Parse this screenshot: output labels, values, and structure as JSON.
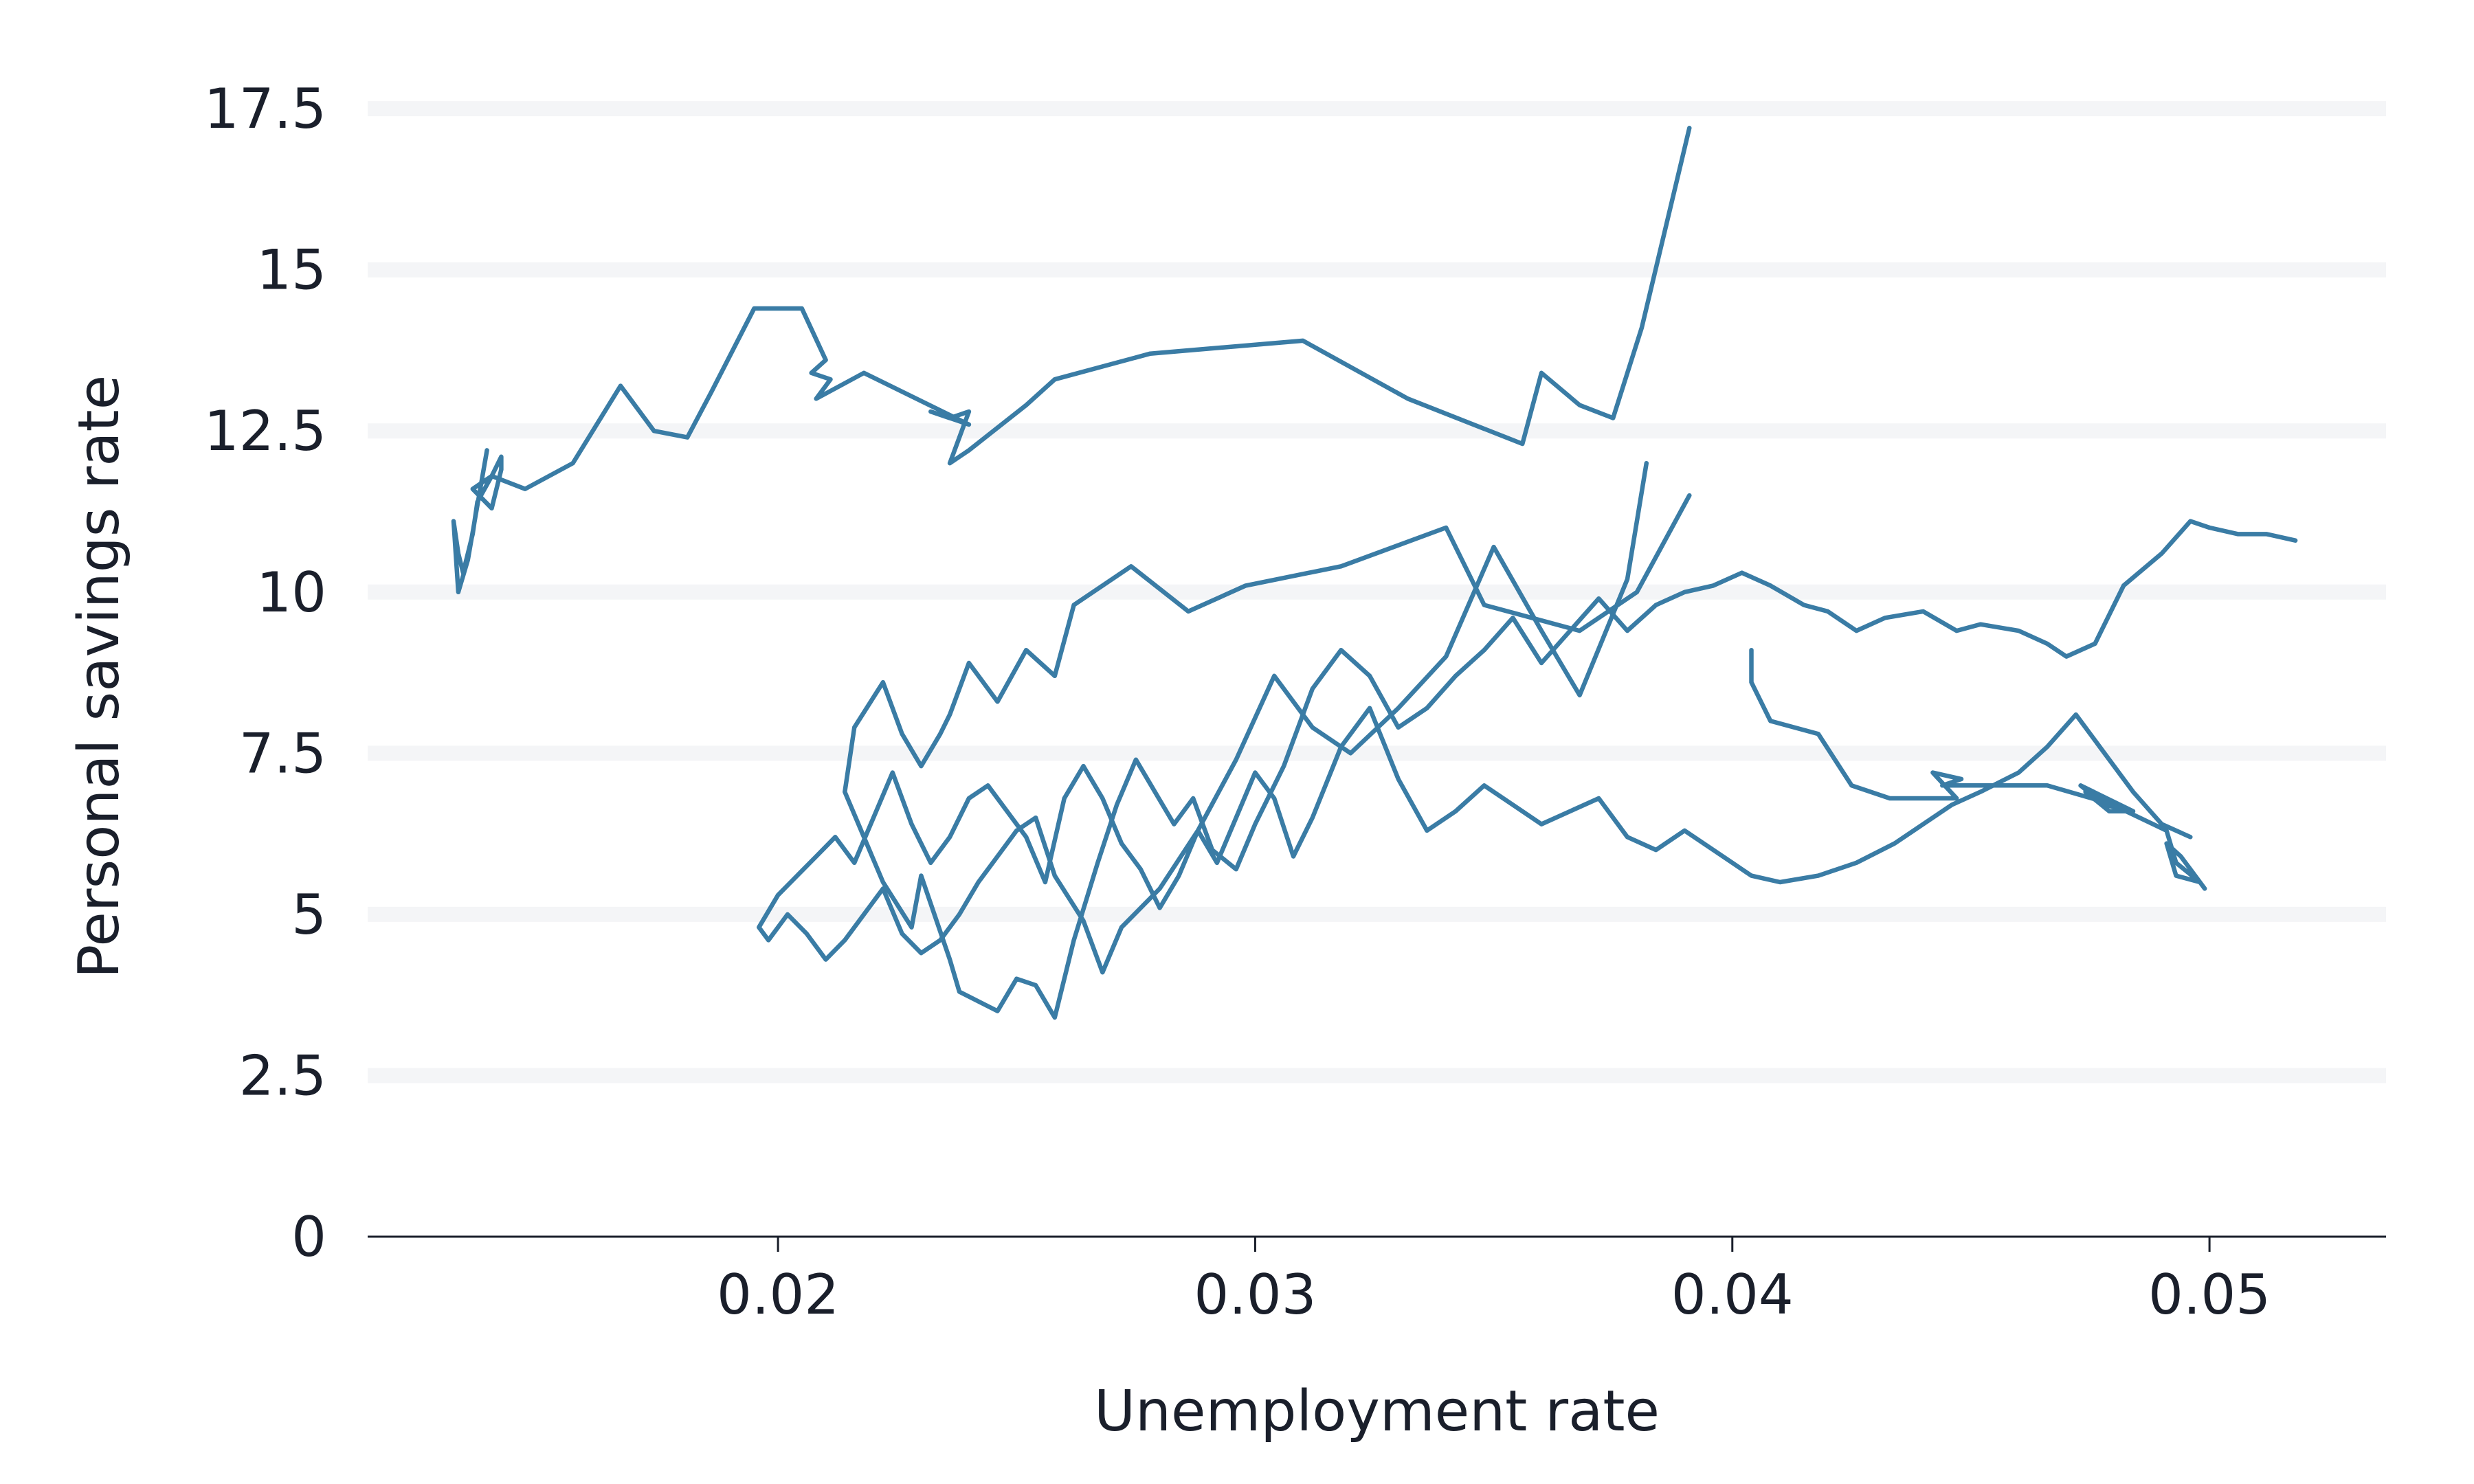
{
  "chart_data": {
    "type": "line",
    "xlabel": "Unemployment rate",
    "ylabel": "Personal savings rate",
    "xlim": [
      0.0114,
      0.0537
    ],
    "ylim": [
      0,
      17.5
    ],
    "xticks": [
      0.02,
      0.03,
      0.04,
      0.05
    ],
    "xtick_labels": [
      "0.02",
      "0.03",
      "0.04",
      "0.05"
    ],
    "yticks": [
      0,
      2.5,
      5,
      7.5,
      10,
      12.5,
      15,
      17.5
    ],
    "ytick_labels": [
      "0",
      "2.5",
      "5",
      "7.5",
      "10",
      "12.5",
      "15",
      "17.5"
    ],
    "grid": "horizontal",
    "line_color": "#3a7ca5",
    "series": [
      {
        "x": [
          0.0391,
          0.0381,
          0.0375,
          0.0368,
          0.036,
          0.0356,
          0.0332,
          0.031,
          0.0278,
          0.0258,
          0.0252,
          0.024,
          0.0236,
          0.024,
          0.0236,
          0.0232,
          0.024,
          0.0218,
          0.0208,
          0.0211,
          0.0207,
          0.021,
          0.0205,
          0.0195,
          0.0186,
          0.0181,
          0.0174,
          0.0167,
          0.0157,
          0.0147,
          0.014,
          0.0136,
          0.014,
          0.0142,
          0.0142,
          0.014,
          0.0137,
          0.0136,
          0.0134,
          0.0133,
          0.0132,
          0.0133,
          0.0135,
          0.0139
        ],
        "y": [
          17.2,
          14.1,
          12.7,
          12.9,
          13.4,
          12.3,
          13.0,
          13.9,
          13.7,
          13.3,
          12.9,
          12.2,
          12.0,
          12.8,
          12.7,
          12.8,
          12.6,
          13.4,
          13.0,
          13.3,
          13.4,
          13.6,
          14.4,
          14.4,
          13.1,
          12.4,
          12.5,
          13.2,
          12.0,
          11.6,
          11.8,
          11.6,
          11.3,
          11.9,
          12.1,
          11.8,
          11.4,
          10.9,
          10.3,
          10.6,
          11.1,
          10.0,
          10.5,
          12.2
        ]
      },
      {
        "x": [
          0.0391,
          0.038,
          0.0368,
          0.0348,
          0.034,
          0.0318,
          0.0298,
          0.0286,
          0.0274,
          0.0262,
          0.0258,
          0.0252,
          0.0246,
          0.024,
          0.0236,
          0.0234,
          0.023,
          0.0226,
          0.0222,
          0.0216,
          0.0214,
          0.0218,
          0.0222,
          0.0228,
          0.023,
          0.0236,
          0.0238,
          0.0246,
          0.025,
          0.0254,
          0.0258,
          0.0262,
          0.0267,
          0.0271,
          0.0275,
          0.0279,
          0.0283,
          0.0287,
          0.0291,
          0.0296,
          0.03,
          0.0306,
          0.0312,
          0.0318,
          0.0324,
          0.033,
          0.0336,
          0.0342,
          0.0348,
          0.0354,
          0.036,
          0.0366,
          0.0372,
          0.0378,
          0.0384,
          0.039,
          0.0396,
          0.0402,
          0.0408,
          0.0415,
          0.042,
          0.0426,
          0.0432,
          0.044,
          0.0447,
          0.0452,
          0.046,
          0.0466,
          0.047,
          0.0476,
          0.0482,
          0.049,
          0.0496,
          0.05,
          0.0506,
          0.0512,
          0.0518
        ],
        "y": [
          11.5,
          10.0,
          9.4,
          9.8,
          11.0,
          10.4,
          10.1,
          9.7,
          10.4,
          9.8,
          8.7,
          9.1,
          8.3,
          8.9,
          8.1,
          7.8,
          7.3,
          7.8,
          8.6,
          7.9,
          6.9,
          6.2,
          5.5,
          4.8,
          5.6,
          4.3,
          3.8,
          3.5,
          4.0,
          3.9,
          3.4,
          4.6,
          5.8,
          6.7,
          7.4,
          6.9,
          6.4,
          6.8,
          6.0,
          5.7,
          6.4,
          7.3,
          8.5,
          9.1,
          8.7,
          7.9,
          8.2,
          8.7,
          9.1,
          9.6,
          8.9,
          9.4,
          9.9,
          9.4,
          9.8,
          10.0,
          10.1,
          10.3,
          10.1,
          9.8,
          9.7,
          9.4,
          9.6,
          9.7,
          9.4,
          9.5,
          9.4,
          9.2,
          9.0,
          9.2,
          10.1,
          10.6,
          11.1,
          11.0,
          10.9,
          10.9,
          10.8
        ]
      },
      {
        "x": [
          0.0382,
          0.0378,
          0.0368,
          0.036,
          0.035,
          0.034,
          0.033,
          0.032,
          0.0312,
          0.0304,
          0.0296,
          0.0288,
          0.028,
          0.0272,
          0.0268,
          0.0264,
          0.0258,
          0.0254,
          0.025,
          0.0246,
          0.0242,
          0.0238,
          0.0234,
          0.023,
          0.0226,
          0.0222,
          0.0218,
          0.0214,
          0.021,
          0.0206,
          0.0202,
          0.0198,
          0.0196,
          0.02,
          0.0204,
          0.0208,
          0.0212,
          0.0216,
          0.022,
          0.0224,
          0.0228,
          0.0232,
          0.0236,
          0.024,
          0.0244,
          0.0248,
          0.0252,
          0.0256,
          0.026,
          0.0264,
          0.0268,
          0.0272,
          0.0276,
          0.028,
          0.0284,
          0.0288,
          0.0292,
          0.0296,
          0.03,
          0.0304,
          0.0308,
          0.0312,
          0.0318,
          0.0324,
          0.033,
          0.0336,
          0.0342,
          0.0348,
          0.0354,
          0.036,
          0.0366,
          0.0372,
          0.0378,
          0.0384,
          0.039,
          0.0396,
          0.04,
          0.0404,
          0.041,
          0.0418,
          0.0426,
          0.0434,
          0.044,
          0.0446,
          0.0452,
          0.046,
          0.0466,
          0.0472,
          0.0478,
          0.0484,
          0.049,
          0.0496
        ],
        "y": [
          12.0,
          10.2,
          8.4,
          9.4,
          10.7,
          9.0,
          8.2,
          7.5,
          7.9,
          8.7,
          7.4,
          6.3,
          5.4,
          4.8,
          4.1,
          4.9,
          5.6,
          6.5,
          6.3,
          5.9,
          5.5,
          5.0,
          4.6,
          4.4,
          4.7,
          5.4,
          5.0,
          4.6,
          4.3,
          4.7,
          5.0,
          4.6,
          4.8,
          5.3,
          5.6,
          5.9,
          6.2,
          5.8,
          6.5,
          7.2,
          6.4,
          5.8,
          6.2,
          6.8,
          7.0,
          6.6,
          6.2,
          5.5,
          6.8,
          7.3,
          6.8,
          6.1,
          5.7,
          5.1,
          5.6,
          6.3,
          5.8,
          6.5,
          7.2,
          6.8,
          5.9,
          6.5,
          7.6,
          8.2,
          7.1,
          6.3,
          6.6,
          7.0,
          6.7,
          6.4,
          6.6,
          6.8,
          6.2,
          6.0,
          6.3,
          6.0,
          5.8,
          5.6,
          5.5,
          5.6,
          5.8,
          6.1,
          6.4,
          6.7,
          6.9,
          7.2,
          7.6,
          8.1,
          7.5,
          6.9,
          6.4,
          6.2
        ]
      },
      {
        "x": [
          0.0404,
          0.0404,
          0.0408,
          0.0418,
          0.0425,
          0.0433,
          0.0447,
          0.0442,
          0.0448,
          0.0444,
          0.0466,
          0.048,
          0.0484,
          0.0473,
          0.0478,
          0.0484,
          0.0479,
          0.0474,
          0.0491,
          0.0493,
          0.0498,
          0.0493,
          0.0491,
          0.0494,
          0.0499
        ],
        "y": [
          9.1,
          8.6,
          8.0,
          7.8,
          7.0,
          6.8,
          6.8,
          7.2,
          7.1,
          7.0,
          7.0,
          6.7,
          6.6,
          7.0,
          6.7,
          6.6,
          6.6,
          6.9,
          6.3,
          5.8,
          5.5,
          5.6,
          6.1,
          5.9,
          5.4
        ]
      }
    ]
  }
}
